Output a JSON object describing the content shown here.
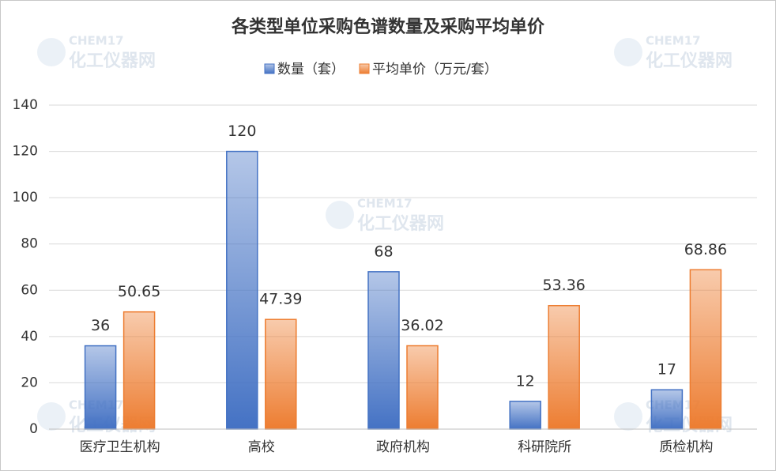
{
  "chart_data": {
    "type": "bar",
    "title": "各类型单位采购色谱数量及采购平均单价",
    "categories": [
      "医疗卫生机构",
      "高校",
      "政府机构",
      "科研院所",
      "质检机构"
    ],
    "series": [
      {
        "name": "数量（套）",
        "color": "#4472c4",
        "values": [
          36,
          120,
          68,
          12,
          17
        ]
      },
      {
        "name": "平均单价（万元/套）",
        "color": "#ed7d31",
        "values": [
          50.65,
          47.39,
          36.02,
          53.36,
          68.86
        ]
      }
    ],
    "ylim": [
      0,
      140
    ],
    "yticks": [
      0,
      20,
      40,
      60,
      80,
      100,
      120,
      140
    ],
    "grid": true,
    "legend": "top",
    "watermark": [
      "CHEM17",
      "化工仪器网"
    ]
  }
}
